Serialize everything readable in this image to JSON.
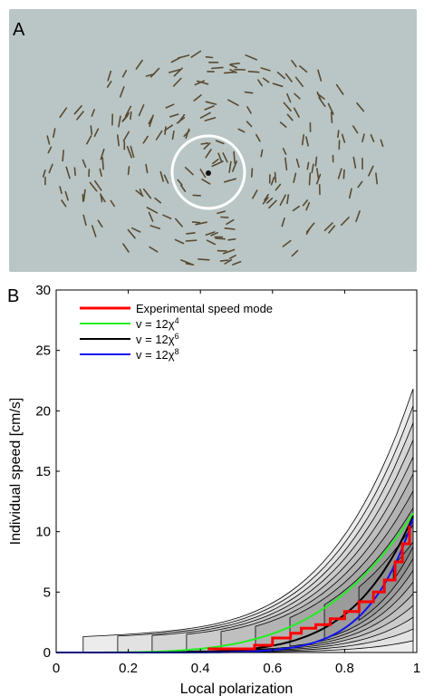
{
  "panel_a": {
    "label": "A",
    "colors": {
      "water": "#b9c6c5",
      "fish": "#5a4a32",
      "ring": "#ffffff",
      "dot": "#111111"
    }
  },
  "panel_b": {
    "label": "B"
  },
  "chart_data": {
    "type": "line",
    "xlabel": "Local polarization",
    "ylabel": "Individual speed [cm/s]",
    "xlim": [
      0,
      1
    ],
    "ylim": [
      0,
      30
    ],
    "xticks": [
      0,
      0.2,
      0.4,
      0.6,
      0.8,
      1
    ],
    "xtick_labels": [
      "0",
      "0.2",
      "0.4",
      "0.6",
      "0.8",
      "1"
    ],
    "yticks": [
      0,
      5,
      10,
      15,
      20,
      25,
      30
    ],
    "ytick_labels": [
      "0",
      "5",
      "10",
      "15",
      "20",
      "25",
      "30"
    ],
    "legend_position": "top-left",
    "grid": false,
    "series": [
      {
        "name": "Experimental speed mode",
        "color": "#ff0000",
        "step": true,
        "x": [
          0.42,
          0.5,
          0.55,
          0.6,
          0.65,
          0.68,
          0.72,
          0.76,
          0.8,
          0.84,
          0.88,
          0.91,
          0.94,
          0.96,
          0.98
        ],
        "y": [
          0.3,
          0.3,
          0.6,
          1.2,
          1.6,
          2.0,
          2.3,
          2.8,
          3.4,
          4.2,
          5.0,
          6.0,
          7.5,
          9.0,
          10.5
        ]
      },
      {
        "name": "v = 12χ⁴",
        "label_prefix": "v = 12χ",
        "label_exp": "4",
        "color": "#22ee22",
        "a": 12,
        "power": 4
      },
      {
        "name": "v = 12χ⁶",
        "label_prefix": "v = 12χ",
        "label_exp": "6",
        "color": "#000000",
        "a": 12,
        "power": 6
      },
      {
        "name": "v = 12χ⁸",
        "label_prefix": "v = 12χ",
        "label_exp": "8",
        "color": "#1111ee",
        "a": 12,
        "power": 8
      }
    ],
    "density_contours": {
      "levels": 10,
      "fill_colors": [
        "#ececec",
        "#e2e2e2",
        "#d6d6d6",
        "#cbcbcb",
        "#bfbfbf",
        "#b3b3b3",
        "#a7a7a7",
        "#9b9b9b",
        "#8f8f8f",
        "#838383"
      ]
    }
  }
}
